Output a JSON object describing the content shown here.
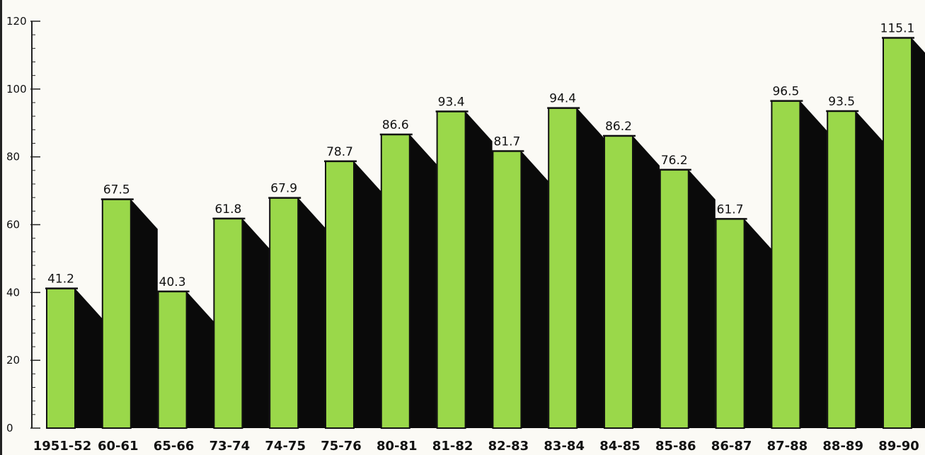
{
  "chart_data": {
    "type": "bar",
    "categories": [
      "1951-52",
      "60-61",
      "65-66",
      "73-74",
      "74-75",
      "75-76",
      "80-81",
      "81-82",
      "82-83",
      "83-84",
      "84-85",
      "85-86",
      "86-87",
      "87-88",
      "88-89",
      "89-90"
    ],
    "values": [
      41.2,
      67.5,
      40.3,
      61.8,
      67.9,
      78.7,
      86.6,
      93.4,
      81.7,
      94.4,
      86.2,
      76.2,
      61.7,
      96.5,
      93.5,
      115.1
    ],
    "value_labels": [
      "41.2",
      "67.5",
      "40.3",
      "61.8",
      "67.9",
      "78.7",
      "86.6",
      "93.4",
      "81.7",
      "94.4",
      "86.2",
      "76.2",
      "61.7",
      "96.5",
      "93.5",
      "115.1"
    ],
    "yticks": [
      "0",
      "20",
      "40",
      "60",
      "80",
      "100",
      "120"
    ],
    "ylim": [
      0,
      120
    ],
    "title": "",
    "xlabel": "",
    "ylabel": "",
    "grid": false,
    "colors": {
      "bar": "#9ad84a",
      "bar_outline": "#111111",
      "shadow": "#0a0a0a",
      "axis": "#222222"
    }
  }
}
